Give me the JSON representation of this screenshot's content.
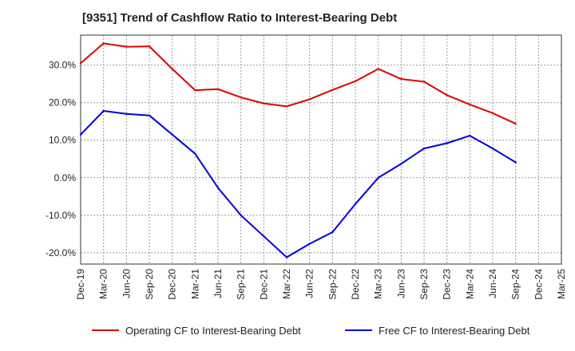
{
  "chart_data": {
    "type": "line",
    "title": "[9351]  Trend of Cashflow Ratio to Interest-Bearing Debt",
    "xlabel": "",
    "ylabel": "",
    "x": [
      "Dec-19",
      "Mar-20",
      "Jun-20",
      "Sep-20",
      "Dec-20",
      "Mar-21",
      "Jun-21",
      "Sep-21",
      "Dec-21",
      "Mar-22",
      "Jun-22",
      "Sep-22",
      "Dec-22",
      "Mar-23",
      "Jun-23",
      "Sep-23",
      "Dec-23",
      "Mar-24",
      "Jun-24",
      "Sep-24",
      "Dec-24",
      "Mar-25"
    ],
    "ylim": [
      -23,
      38
    ],
    "yticks": [
      -20,
      -10,
      0,
      10,
      20,
      30
    ],
    "ytick_labels": [
      "-20.0%",
      "-10.0%",
      "0.0%",
      "10.0%",
      "20.0%",
      "30.0%"
    ],
    "grid": true,
    "legend_position": "bottom",
    "series": [
      {
        "name": "Operating CF to Interest-Bearing Debt",
        "color": "#e00000",
        "values": [
          30.5,
          35.8,
          34.9,
          35.0,
          29.0,
          23.3,
          23.6,
          21.4,
          19.8,
          19.0,
          20.9,
          23.4,
          25.7,
          29.0,
          26.3,
          25.6,
          22.0,
          19.5,
          17.2,
          14.4,
          null,
          null
        ]
      },
      {
        "name": "Free CF to Interest-Bearing Debt",
        "color": "#0000e0",
        "values": [
          11.5,
          17.8,
          17.0,
          16.6,
          11.5,
          6.4,
          -2.7,
          -10.0,
          -15.6,
          -21.2,
          -17.6,
          -14.5,
          -7.0,
          0.0,
          3.7,
          7.8,
          9.2,
          11.2,
          7.8,
          4.1,
          null,
          null
        ]
      }
    ]
  }
}
